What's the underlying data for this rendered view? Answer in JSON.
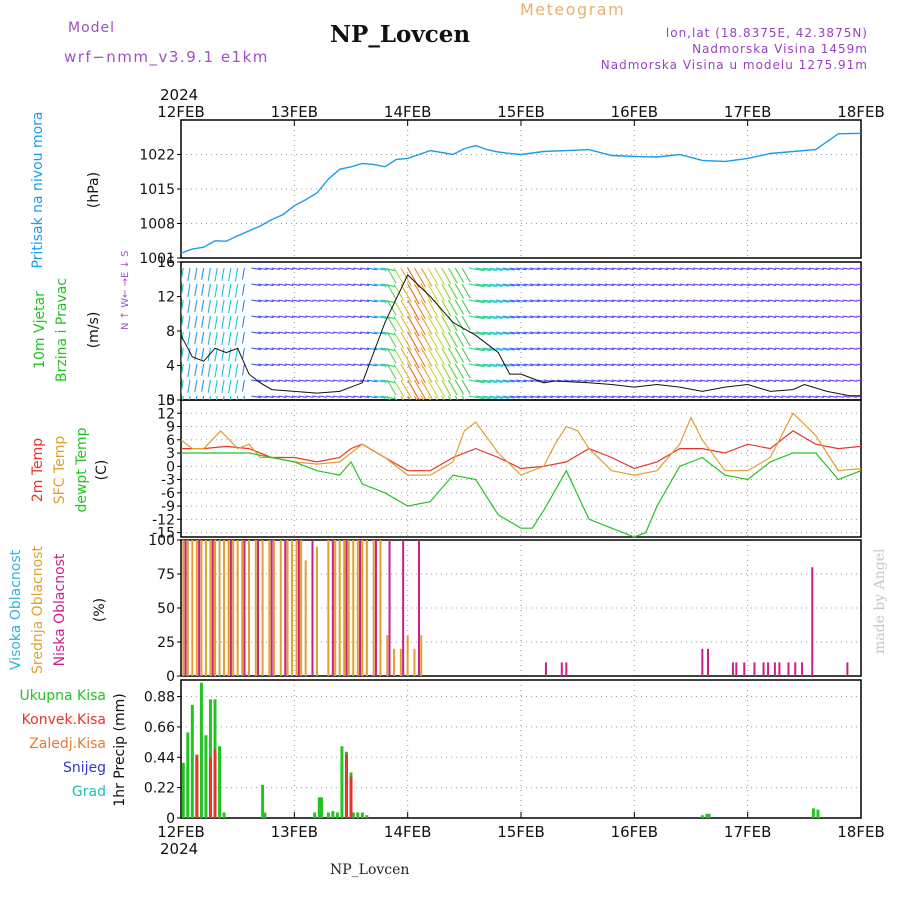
{
  "header": {
    "model_label": "Model",
    "model_name": "wrf−nmm_v3.9.1  e1km",
    "title": "NP_Lovcen",
    "product": "Meteogram",
    "coords": "lon,lat (18.8375E, 42.3875N)",
    "elevation": "Nadmorska Visina 1459m",
    "model_elevation": "Nadmorska Visina u modelu 1275.91m",
    "footer_title": "NP_Lovcen",
    "watermark": "made by Angel"
  },
  "colors": {
    "pressure": "#1e9be8",
    "t2m": "#e8342c",
    "sfc": "#e0a030",
    "dewpt": "#22c422",
    "high_cloud": "#34b0e0",
    "mid_cloud": "#e0a030",
    "low_cloud": "#cc1d8c",
    "model_text": "#a050c8",
    "coords_text": "#9a40c0",
    "product_text": "#e8b070",
    "total_precip": "#22c422",
    "conv_precip": "#e8342c",
    "frozen_precip": "#e87a30",
    "snow": "#3535d8",
    "graupel": "#22c0b0"
  },
  "chart_data": [
    {
      "id": "pressure",
      "type": "line",
      "ylabel": "(hPa)",
      "side_labels": [
        "Pritisak na nivou mora"
      ],
      "yticks": [
        1001,
        1008,
        1015,
        1022
      ],
      "ylim": [
        1001,
        1029
      ],
      "grid": true,
      "series": [
        {
          "color_key": "pressure",
          "x": [
            0,
            0.1,
            0.2,
            0.3,
            0.4,
            0.5,
            0.6,
            0.7,
            0.8,
            0.9,
            1.0,
            1.1,
            1.2,
            1.3,
            1.4,
            1.5,
            1.6,
            1.7,
            1.8,
            1.9,
            2.0,
            2.1,
            2.2,
            2.3,
            2.4,
            2.5,
            2.6,
            2.7,
            2.8,
            2.9,
            3.0,
            3.2,
            3.4,
            3.6,
            3.8,
            4.0,
            4.2,
            4.4,
            4.6,
            4.8,
            5.0,
            5.2,
            5.4,
            5.6,
            5.8,
            6.0
          ],
          "values": [
            1002.0,
            1002.8,
            1003.2,
            1004.5,
            1004.4,
            1005.5,
            1006.5,
            1007.5,
            1008.8,
            1009.8,
            1011.6,
            1012.8,
            1014.2,
            1017.0,
            1019.0,
            1019.5,
            1020.2,
            1020.0,
            1019.5,
            1021.0,
            1021.2,
            1022.0,
            1022.8,
            1022.4,
            1022.0,
            1023.2,
            1023.8,
            1023.0,
            1022.5,
            1022.2,
            1022.0,
            1022.6,
            1022.8,
            1023.0,
            1021.8,
            1021.6,
            1021.5,
            1022.0,
            1020.8,
            1020.6,
            1021.2,
            1022.2,
            1022.6,
            1023.0,
            1026.2,
            1026.3
          ]
        }
      ]
    },
    {
      "id": "wind",
      "type": "vector-field",
      "ylabel": "(m/s)",
      "side_labels": [
        "10m Vjetar",
        "Brzina i Pravac"
      ],
      "compass": "N ↑ W←  →E ↓ S",
      "yticks": [
        0,
        4,
        8,
        12,
        16
      ],
      "ylim": [
        0,
        16
      ],
      "speed": {
        "color_key": "wind_speed",
        "x": [
          0,
          0.1,
          0.2,
          0.3,
          0.4,
          0.5,
          0.6,
          0.7,
          0.8,
          1.0,
          1.2,
          1.4,
          1.6,
          1.8,
          2.0,
          2.2,
          2.4,
          2.6,
          2.8,
          2.9,
          3.0,
          3.1,
          3.2,
          3.3,
          3.6,
          3.8,
          4.0,
          4.2,
          4.4,
          4.6,
          4.8,
          5.0,
          5.2,
          5.4,
          5.5,
          5.7,
          5.9,
          6.0
        ],
        "values": [
          7.5,
          5.0,
          4.5,
          6.0,
          5.5,
          6.0,
          3.0,
          2.0,
          1.2,
          1.0,
          0.8,
          1.0,
          2.0,
          9.0,
          14.5,
          12.0,
          9.0,
          7.5,
          5.5,
          3.0,
          3.0,
          2.5,
          2.0,
          2.2,
          2.0,
          1.8,
          1.5,
          1.8,
          1.5,
          1.0,
          1.5,
          1.8,
          1.0,
          1.2,
          1.8,
          1.0,
          0.5,
          0.5
        ]
      }
    },
    {
      "id": "temperature",
      "type": "line",
      "ylabel": "(C)",
      "side_labels": [
        "2m Temp",
        "SFC Temp",
        "dewpt Temp"
      ],
      "yticks": [
        -15,
        -12,
        -9,
        -6,
        -3,
        0,
        3,
        6,
        9,
        12,
        15
      ],
      "ylim": [
        -16,
        15
      ],
      "series": [
        {
          "name": "2m Temp",
          "color_key": "t2m",
          "x": [
            0,
            0.2,
            0.4,
            0.6,
            0.8,
            1.0,
            1.2,
            1.4,
            1.5,
            1.6,
            1.8,
            2.0,
            2.2,
            2.4,
            2.6,
            2.8,
            3.0,
            3.2,
            3.4,
            3.6,
            3.8,
            4.0,
            4.2,
            4.4,
            4.6,
            4.8,
            5.0,
            5.2,
            5.4,
            5.6,
            5.8,
            6.0
          ],
          "values": [
            4,
            4,
            4.5,
            4,
            2,
            2,
            1,
            2,
            4,
            5,
            2,
            -1,
            -1,
            2,
            4,
            2,
            -0.5,
            0,
            1,
            4,
            2,
            -0.5,
            1,
            4,
            4,
            3,
            5,
            4,
            8,
            5,
            4,
            4.5
          ]
        },
        {
          "name": "SFC Temp",
          "color_key": "sfc",
          "x": [
            0,
            0.1,
            0.2,
            0.35,
            0.5,
            0.6,
            0.7,
            0.8,
            1.0,
            1.2,
            1.4,
            1.6,
            1.8,
            2.0,
            2.2,
            2.4,
            2.5,
            2.6,
            2.8,
            3.0,
            3.2,
            3.3,
            3.4,
            3.5,
            3.6,
            3.8,
            4.0,
            4.2,
            4.4,
            4.5,
            4.6,
            4.8,
            5.0,
            5.2,
            5.4,
            5.6,
            5.8,
            6.0
          ],
          "values": [
            6,
            4,
            4,
            8,
            4,
            5,
            2,
            2,
            1,
            0.5,
            1,
            5,
            2,
            -2,
            -2,
            1,
            8,
            10,
            3,
            -2,
            0,
            5,
            9,
            8,
            4,
            -1,
            -2,
            -1,
            5,
            11,
            6,
            -1,
            -1,
            2,
            12,
            7,
            -1,
            -0.5
          ]
        },
        {
          "name": "dewpt Temp",
          "color_key": "dewpt",
          "x": [
            0,
            0.2,
            0.4,
            0.6,
            0.8,
            1.0,
            1.2,
            1.4,
            1.5,
            1.6,
            1.8,
            2.0,
            2.2,
            2.4,
            2.6,
            2.8,
            3.0,
            3.1,
            3.2,
            3.4,
            3.6,
            3.8,
            4.0,
            4.1,
            4.2,
            4.4,
            4.6,
            4.8,
            5.0,
            5.2,
            5.4,
            5.6,
            5.8,
            6.0
          ],
          "values": [
            3,
            3,
            3,
            3,
            2,
            1,
            -1,
            -2,
            1,
            -4,
            -6,
            -9,
            -8,
            -2,
            -3,
            -11,
            -14,
            -14,
            -10,
            -1,
            -12,
            -14,
            -16,
            -15,
            -9,
            0,
            2,
            -2,
            -3,
            1,
            3,
            3,
            -3,
            -1
          ]
        }
      ]
    },
    {
      "id": "clouds",
      "type": "bar",
      "ylabel": "(%)",
      "side_labels": [
        "Visoka Oblacnost",
        "Srednja Oblacnost",
        "Niska Oblacnost"
      ],
      "yticks": [
        0,
        25,
        50,
        75,
        100
      ],
      "ylim": [
        0,
        100
      ],
      "series": [
        {
          "name": "Srednja Oblacnost",
          "color_key": "mid_cloud",
          "x": [
            0.02,
            0.06,
            0.1,
            0.14,
            0.18,
            0.22,
            0.26,
            0.3,
            0.34,
            0.38,
            0.42,
            0.46,
            0.5,
            0.54,
            0.6,
            0.66,
            0.72,
            0.78,
            0.82,
            0.88,
            0.94,
            0.98,
            1.02,
            1.06,
            1.1,
            1.2,
            1.3,
            1.36,
            1.4,
            1.44,
            1.48,
            1.52,
            1.56,
            1.6,
            1.64,
            1.7,
            1.76,
            1.82,
            1.88,
            1.94,
            2.0,
            2.06,
            2.12
          ],
          "values": [
            100,
            100,
            100,
            100,
            100,
            100,
            100,
            100,
            100,
            100,
            100,
            100,
            100,
            100,
            100,
            100,
            100,
            100,
            100,
            100,
            100,
            100,
            100,
            100,
            85,
            95,
            100,
            100,
            100,
            100,
            100,
            100,
            100,
            100,
            100,
            100,
            100,
            30,
            20,
            20,
            30,
            20,
            30
          ]
        },
        {
          "name": "Niska Oblacnost",
          "color_key": "low_cloud",
          "x": [
            0.04,
            0.16,
            0.28,
            0.44,
            0.56,
            0.68,
            0.8,
            0.92,
            1.04,
            1.16,
            1.34,
            1.46,
            1.58,
            1.72,
            1.84,
            1.96,
            2.1,
            3.22,
            3.36,
            3.4,
            4.6,
            4.65,
            4.87,
            4.9,
            4.97,
            5.06,
            5.14,
            5.18,
            5.24,
            5.28,
            5.36,
            5.42,
            5.48,
            5.57,
            5.88
          ],
          "values": [
            100,
            100,
            100,
            100,
            100,
            100,
            100,
            100,
            100,
            100,
            100,
            100,
            100,
            100,
            100,
            100,
            100,
            10,
            10,
            10,
            20,
            20,
            10,
            10,
            10,
            10,
            10,
            10,
            10,
            10,
            10,
            10,
            10,
            80,
            10
          ]
        }
      ]
    },
    {
      "id": "precip",
      "type": "bar",
      "ylabel": "1hr Precip (mm)",
      "side_labels": [
        "Ukupna Kisa",
        "Konvek.Kisa",
        "Zaledj.Kisa",
        "Snijeg",
        "Grad"
      ],
      "yticks": [
        0,
        0.22,
        0.44,
        0.66,
        0.88
      ],
      "ylim": [
        0,
        1.0
      ],
      "series": [
        {
          "name": "Ukupna Kisa",
          "color_key": "total_precip",
          "x": [
            0.02,
            0.06,
            0.1,
            0.14,
            0.18,
            0.22,
            0.26,
            0.3,
            0.34,
            0.38,
            0.72,
            0.74,
            1.18,
            1.22,
            1.24,
            1.3,
            1.34,
            1.38,
            1.42,
            1.46,
            1.5,
            1.52,
            1.56,
            1.6,
            1.64,
            4.6,
            4.64,
            4.66,
            5.58,
            5.62
          ],
          "values": [
            0.4,
            0.62,
            0.82,
            0.46,
            0.98,
            0.6,
            0.86,
            0.86,
            0.52,
            0.04,
            0.24,
            0.04,
            0.04,
            0.15,
            0.15,
            0.04,
            0.05,
            0.04,
            0.52,
            0.48,
            0.33,
            0.04,
            0.04,
            0.04,
            0.02,
            0.02,
            0.03,
            0.03,
            0.07,
            0.06
          ]
        },
        {
          "name": "Konvek.Kisa",
          "color_key": "conv_precip",
          "x": [
            0.14,
            0.26,
            0.3,
            1.46,
            1.5
          ],
          "values": [
            0.45,
            0.44,
            0.5,
            0.46,
            0.3
          ]
        }
      ]
    }
  ],
  "time_axis": {
    "year": "2024",
    "ticks": [
      "12FEB",
      "13FEB",
      "14FEB",
      "15FEB",
      "16FEB",
      "17FEB",
      "18FEB"
    ]
  }
}
